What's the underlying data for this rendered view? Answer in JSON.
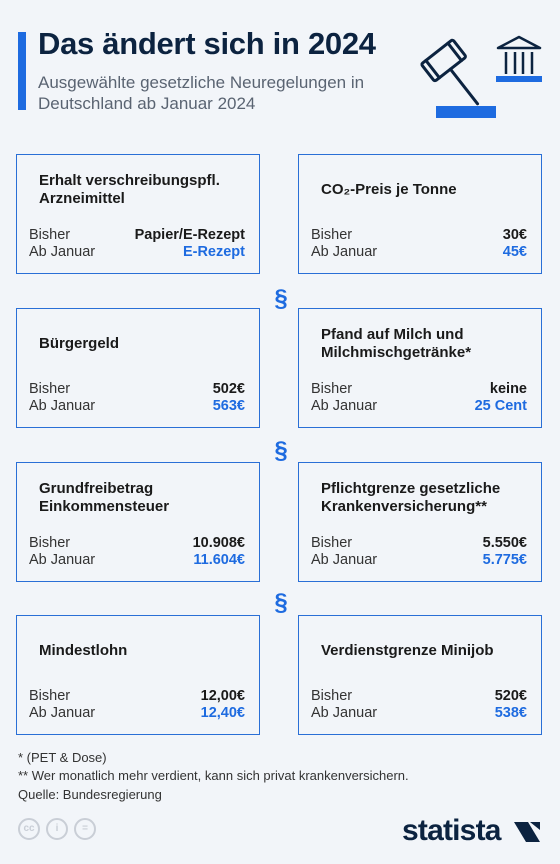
{
  "header": {
    "title": "Das ändert sich in 2024",
    "subtitle": "Ausgewählte gesetzliche Neuregelungen in Deutschland ab Januar 2024"
  },
  "chart_data": {
    "type": "table",
    "row_labels": {
      "before": "Bisher",
      "after": "Ab Januar"
    },
    "items": [
      {
        "title": "Erhalt verschreibungspfl. Arzneimittel",
        "before": "Papier/E-Rezept",
        "after": "E-Rezept"
      },
      {
        "title": "CO₂-Preis je Tonne",
        "before": "30€",
        "after": "45€"
      },
      {
        "title": "Bürgergeld",
        "before": "502€",
        "after": "563€"
      },
      {
        "title": "Pfand auf Milch und Milchmischgetränke*",
        "before": "keine",
        "after": "25 Cent"
      },
      {
        "title": "Grundfreibetrag Einkommensteuer",
        "before": "10.908€",
        "after": "11.604€"
      },
      {
        "title": "Pflichtgrenze gesetzliche Krankenversicherung**",
        "before": "5.550€",
        "after": "5.775€"
      },
      {
        "title": "Mindestlohn",
        "before": "12,00€",
        "after": "12,40€"
      },
      {
        "title": "Verdienstgrenze Minijob",
        "before": "520€",
        "after": "538€"
      }
    ]
  },
  "divider_symbol": "§",
  "footer": {
    "note1": "*   (PET & Dose)",
    "note2": "** Wer monatlich mehr verdient, kann sich privat krankenversichern.",
    "source": "Quelle: Bundesregierung",
    "brand": "statista"
  },
  "colors": {
    "accent": "#1e6be0",
    "navy": "#0c2340",
    "background": "#f2f5f9"
  }
}
